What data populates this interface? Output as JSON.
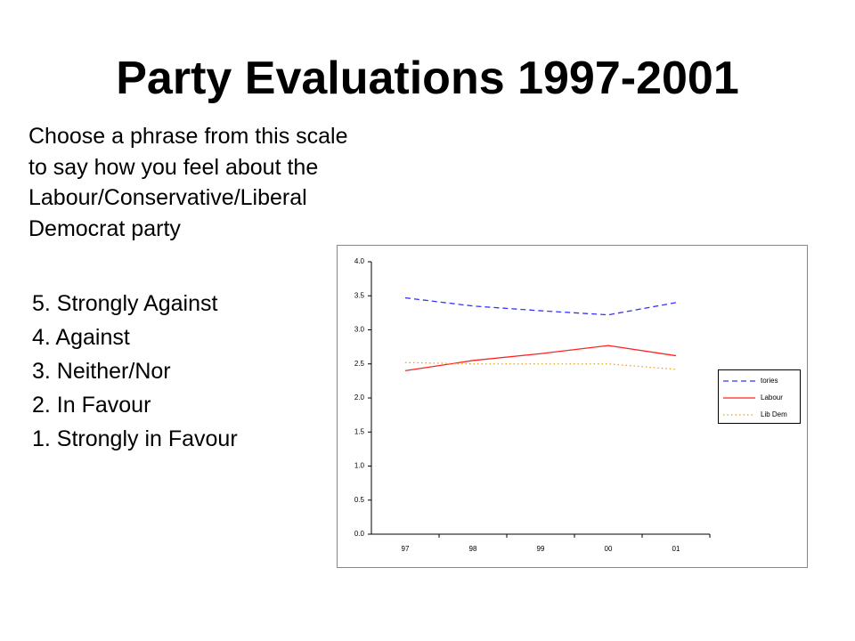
{
  "title": "Party Evaluations 1997-2001",
  "intro": [
    "Choose a phrase from this scale",
    "to say how you feel about the",
    "Labour/Conservative/Liberal",
    "Democrat party"
  ],
  "scale": [
    "5. Strongly Against",
    "4. Against",
    "3. Neither/Nor",
    "2. In Favour",
    "1. Strongly in Favour"
  ],
  "chart_data": {
    "type": "line",
    "categories": [
      "97",
      "98",
      "99",
      "00",
      "01"
    ],
    "series": [
      {
        "name": "tories",
        "color": "#3333ff",
        "dash": "dashed",
        "values": [
          3.47,
          3.35,
          3.28,
          3.22,
          3.4
        ]
      },
      {
        "name": "Labour",
        "color": "#ff2222",
        "dash": "solid",
        "values": [
          2.4,
          2.55,
          2.65,
          2.77,
          2.62
        ]
      },
      {
        "name": "Lib Dem",
        "color": "#e8a020",
        "dash": "dotted",
        "values": [
          2.52,
          2.5,
          2.5,
          2.5,
          2.42
        ]
      }
    ],
    "ylim": [
      0,
      4
    ],
    "yticks": [
      {
        "value": 0,
        "label": "0.0"
      },
      {
        "value": 0.5,
        "label": "0.5"
      },
      {
        "value": 1,
        "label": "1.0"
      },
      {
        "value": 1.5,
        "label": "1.5"
      },
      {
        "value": 2,
        "label": "2.0"
      },
      {
        "value": 2.5,
        "label": "2.5"
      },
      {
        "value": 3,
        "label": "3.0"
      },
      {
        "value": 3.5,
        "label": "3.5"
      },
      {
        "value": 4,
        "label": "4.0"
      }
    ],
    "grid": false,
    "legend": "right"
  }
}
